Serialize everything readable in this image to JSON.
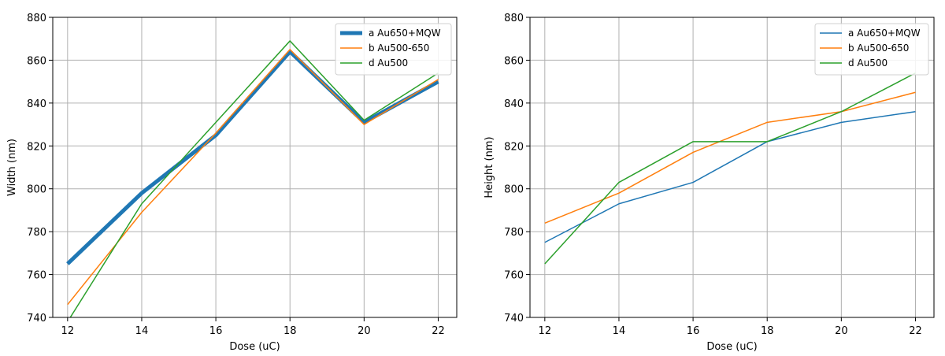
{
  "chart_data": [
    {
      "type": "line",
      "xlabel": "Dose (uC)",
      "ylabel": "Width (nm)",
      "xlim": [
        11.6,
        22.5
      ],
      "ylim": [
        740,
        880
      ],
      "xticks": [
        12,
        14,
        16,
        18,
        20,
        22
      ],
      "yticks": [
        740,
        760,
        780,
        800,
        820,
        840,
        860,
        880
      ],
      "grid": true,
      "legend_position": "top-right",
      "x": [
        12,
        14,
        16,
        18,
        20,
        22
      ],
      "series": [
        {
          "name": "a Au650+MQW",
          "color": "#1f77b4",
          "width": 5,
          "values": [
            765,
            798,
            825,
            864,
            831,
            850
          ]
        },
        {
          "name": "b Au500-650",
          "color": "#ff7f0e",
          "width": 1.5,
          "values": [
            746,
            789,
            826,
            865,
            830,
            851
          ]
        },
        {
          "name": "d Au500",
          "color": "#2ca02c",
          "width": 1.5,
          "values": [
            738,
            793,
            831,
            869,
            832,
            854
          ]
        }
      ]
    },
    {
      "type": "line",
      "xlabel": "Dose (uC)",
      "ylabel": "Height (nm)",
      "xlim": [
        11.6,
        22.5
      ],
      "ylim": [
        740,
        880
      ],
      "xticks": [
        12,
        14,
        16,
        18,
        20,
        22
      ],
      "yticks": [
        740,
        760,
        780,
        800,
        820,
        840,
        860,
        880
      ],
      "grid": true,
      "legend_position": "top-right",
      "x": [
        12,
        14,
        16,
        18,
        20,
        22
      ],
      "series": [
        {
          "name": "a Au650+MQW",
          "color": "#1f77b4",
          "width": 1.5,
          "values": [
            775,
            793,
            803,
            822,
            831,
            836
          ]
        },
        {
          "name": "b Au500-650",
          "color": "#ff7f0e",
          "width": 1.5,
          "values": [
            784,
            798,
            817,
            831,
            836,
            845
          ]
        },
        {
          "name": "d Au500",
          "color": "#2ca02c",
          "width": 1.5,
          "values": [
            765,
            803,
            822,
            822,
            836,
            854
          ]
        }
      ]
    }
  ]
}
